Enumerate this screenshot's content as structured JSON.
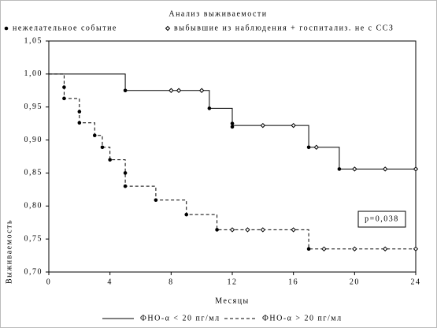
{
  "chart_data": {
    "type": "survival",
    "title": "Анализ выживаемости",
    "x_label": "Месяцы",
    "y_label": "Выживаемость",
    "annotation": "p=0,038",
    "marker_legend": [
      "нежелательное событие",
      "выбывшие из наблюдения + госпитализ. не с ССЗ"
    ],
    "xlim": [
      0,
      24
    ],
    "xticks": [
      0,
      4,
      8,
      12,
      16,
      20,
      24
    ],
    "ylim": [
      0.7,
      1.05
    ],
    "yticks": [
      {
        "value": 0.7,
        "label": "0,70"
      },
      {
        "value": 0.75,
        "label": "0,75"
      },
      {
        "value": 0.8,
        "label": "0,80"
      },
      {
        "value": 0.85,
        "label": "0,85"
      },
      {
        "value": 0.9,
        "label": "0,90"
      },
      {
        "value": 0.95,
        "label": "0,95"
      },
      {
        "value": 1.0,
        "label": "1,00"
      },
      {
        "value": 1.05,
        "label": "1,05"
      }
    ],
    "series": [
      {
        "name": "ФНО-α < 20 пг/мл",
        "color": "#000000",
        "dashed": false,
        "x": [
          0,
          5,
          10.5,
          12,
          17,
          19,
          24
        ],
        "values": [
          1.0,
          0.975,
          0.948,
          0.922,
          0.889,
          0.856,
          0.856
        ],
        "events": {
          "x": [
            5,
            10.5,
            12,
            12,
            17,
            19
          ],
          "values": [
            0.975,
            0.948,
            0.925,
            0.92,
            0.889,
            0.856
          ]
        },
        "censored": {
          "x": [
            8,
            8.5,
            10,
            14,
            16,
            17.5,
            20,
            22,
            24
          ],
          "values": [
            0.975,
            0.975,
            0.975,
            0.922,
            0.922,
            0.889,
            0.856,
            0.856,
            0.856
          ]
        }
      },
      {
        "name": "ФНО-α > 20 пг/мл",
        "color": "#000000",
        "dashed": true,
        "x": [
          0,
          1,
          2,
          3,
          3.5,
          4,
          5,
          7,
          9,
          11,
          17,
          24
        ],
        "values": [
          1.0,
          0.963,
          0.926,
          0.907,
          0.889,
          0.87,
          0.83,
          0.809,
          0.787,
          0.764,
          0.735,
          0.735
        ],
        "events": {
          "x": [
            1,
            1,
            2,
            2,
            3,
            3.5,
            4,
            5,
            5,
            7,
            9,
            11,
            17
          ],
          "values": [
            0.98,
            0.963,
            0.943,
            0.926,
            0.907,
            0.889,
            0.87,
            0.85,
            0.83,
            0.809,
            0.787,
            0.764,
            0.735
          ]
        },
        "censored": {
          "x": [
            12,
            13,
            14,
            16,
            18,
            20,
            22,
            24
          ],
          "values": [
            0.764,
            0.764,
            0.764,
            0.764,
            0.735,
            0.735,
            0.735,
            0.735
          ]
        }
      }
    ]
  }
}
